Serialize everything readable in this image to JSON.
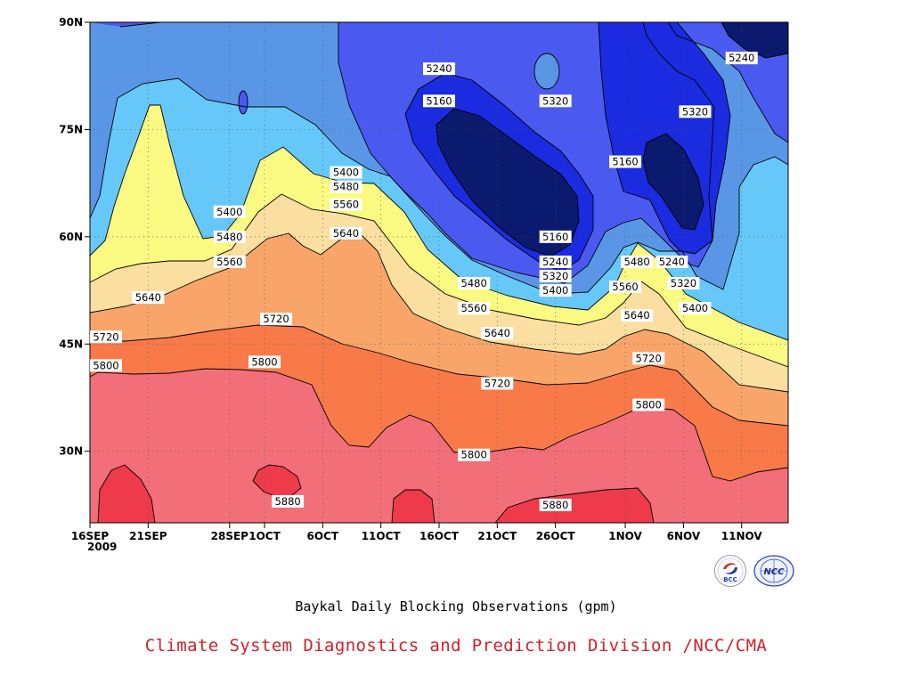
{
  "colors": {
    "background": "#ffffff",
    "credit_text": "#d0202a",
    "bands": {
      "below_5160": "#0a1a6e",
      "5160_5240": "#1a2be0",
      "5240_5320": "#4a5af0",
      "5320_5400": "#5a96e6",
      "5400_5480": "#66c8f8",
      "5480_5560": "#fafa82",
      "5560_5640": "#fadfa0",
      "5640_5720": "#f9a56a",
      "5720_5800": "#f87a48",
      "5800_5880": "#f26e78",
      "above_5880": "#ee3a4a"
    }
  },
  "chart_data": {
    "type": "heatmap",
    "subtype": "filled-contour",
    "title": "Baykal Daily Blocking Observations (gpm)",
    "credit": "Climate System Diagnostics and Prediction Division /NCC/CMA",
    "x_axis": {
      "tick_labels": [
        "16SEP",
        "21SEP",
        "28SEP",
        "1OCT",
        "6OCT",
        "11OCT",
        "16OCT",
        "21OCT",
        "26OCT",
        "1NOV",
        "6NOV",
        "11NOV"
      ],
      "year_label": "2009",
      "range": [
        "2009-09-16",
        "2009-11-15"
      ]
    },
    "y_axis": {
      "tick_labels": [
        "90N",
        "75N",
        "60N",
        "45N",
        "30N"
      ],
      "range_deg": [
        20,
        90
      ]
    },
    "contour_levels": [
      5160,
      5240,
      5320,
      5400,
      5480,
      5560,
      5640,
      5720,
      5800,
      5880
    ],
    "contour_labels": [
      {
        "text": "5240",
        "date": "2009-10-16",
        "lat": 83.5
      },
      {
        "text": "5160",
        "date": "2009-10-16",
        "lat": 79.0
      },
      {
        "text": "5320",
        "date": "2009-10-26",
        "lat": 79.0
      },
      {
        "text": "5240",
        "date": "2009-11-11",
        "lat": 85.0
      },
      {
        "text": "5320",
        "date": "2009-11-07",
        "lat": 77.5
      },
      {
        "text": "5160",
        "date": "2009-11-01",
        "lat": 70.5
      },
      {
        "text": "5400",
        "date": "2009-09-28",
        "lat": 63.5
      },
      {
        "text": "5400",
        "date": "2009-10-08",
        "lat": 69.0
      },
      {
        "text": "5480",
        "date": "2009-10-08",
        "lat": 67.0
      },
      {
        "text": "5560",
        "date": "2009-10-08",
        "lat": 64.5
      },
      {
        "text": "5640",
        "date": "2009-10-08",
        "lat": 60.5
      },
      {
        "text": "5480",
        "date": "2009-09-28",
        "lat": 60.0
      },
      {
        "text": "5560",
        "date": "2009-09-28",
        "lat": 56.5
      },
      {
        "text": "5160",
        "date": "2009-10-26",
        "lat": 60.0
      },
      {
        "text": "5240",
        "date": "2009-10-26",
        "lat": 56.5
      },
      {
        "text": "5320",
        "date": "2009-10-26",
        "lat": 54.5
      },
      {
        "text": "5400",
        "date": "2009-10-26",
        "lat": 52.5
      },
      {
        "text": "5480",
        "date": "2009-10-19",
        "lat": 53.5
      },
      {
        "text": "5560",
        "date": "2009-10-19",
        "lat": 50.0
      },
      {
        "text": "5640",
        "date": "2009-10-21",
        "lat": 46.5
      },
      {
        "text": "5720",
        "date": "2009-10-21",
        "lat": 39.5
      },
      {
        "text": "5800",
        "date": "2009-10-19",
        "lat": 29.5
      },
      {
        "text": "5880",
        "date": "2009-10-26",
        "lat": 22.5
      },
      {
        "text": "5640",
        "date": "2009-09-21",
        "lat": 51.5
      },
      {
        "text": "5720",
        "date": "2009-09-16",
        "lat": 46.0
      },
      {
        "text": "5800",
        "date": "2009-09-16",
        "lat": 42.0
      },
      {
        "text": "5720",
        "date": "2009-10-02",
        "lat": 48.5
      },
      {
        "text": "5800",
        "date": "2009-10-01",
        "lat": 42.5
      },
      {
        "text": "5880",
        "date": "2009-10-03",
        "lat": 23.0
      },
      {
        "text": "5480",
        "date": "2009-11-02",
        "lat": 56.5
      },
      {
        "text": "5560",
        "date": "2009-11-01",
        "lat": 53.0
      },
      {
        "text": "5640",
        "date": "2009-11-02",
        "lat": 49.0
      },
      {
        "text": "5720",
        "date": "2009-11-03",
        "lat": 43.0
      },
      {
        "text": "5800",
        "date": "2009-11-03",
        "lat": 36.5
      },
      {
        "text": "5240",
        "date": "2009-11-05",
        "lat": 56.5
      },
      {
        "text": "5320",
        "date": "2009-11-06",
        "lat": 53.5
      },
      {
        "text": "5400",
        "date": "2009-11-07",
        "lat": 50.0
      }
    ],
    "legend": "none",
    "grid": "dotted"
  },
  "logos": {
    "bcc": {
      "icon": "bcc-logo-icon",
      "text": "BCC"
    },
    "ncc": {
      "icon": "ncc-logo-icon",
      "text": "NCC"
    }
  }
}
